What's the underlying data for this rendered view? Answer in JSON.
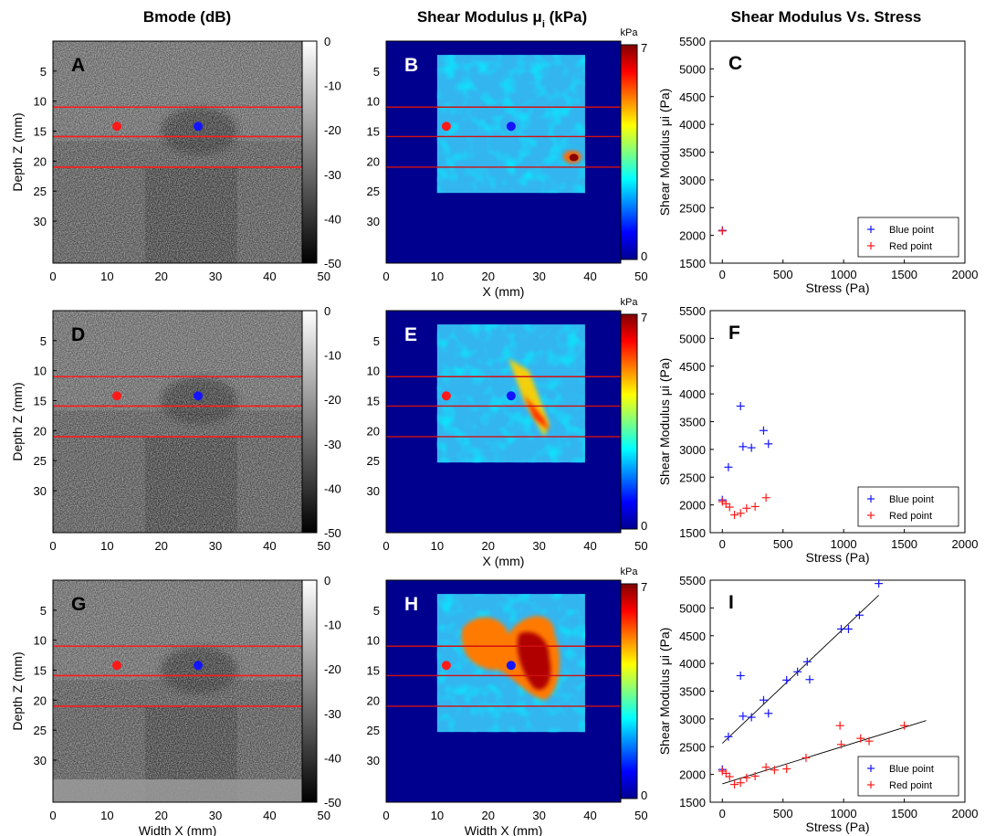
{
  "column_titles": {
    "bmode": "Bmode (dB)",
    "shear": "Shear Modulus μ",
    "shear_sub": "i",
    "shear_unit": " (kPa)",
    "stress": "Shear Modulus Vs. Stress"
  },
  "panel_letters": [
    "A",
    "B",
    "C",
    "D",
    "E",
    "F",
    "G",
    "H",
    "I"
  ],
  "bmode": {
    "ylabel": "Depth Z (mm)",
    "xlabel_bottom": "Width X (mm)",
    "xlim": [
      0,
      46
    ],
    "ylim": [
      0,
      37
    ],
    "xticks": [
      "0",
      "10",
      "20",
      "30",
      "40",
      "50"
    ],
    "yticks": [
      "5",
      "10",
      "15",
      "20",
      "25",
      "30"
    ],
    "colorbar_ticks": [
      "0",
      "-10",
      "-20",
      "-30",
      "-40",
      "-50"
    ],
    "colorbar_range": [
      -50,
      0
    ],
    "red_lines_depth": [
      11,
      15.9,
      21
    ],
    "red_point": [
      11.8,
      14.2
    ],
    "blue_point": [
      26.8,
      14.2
    ],
    "red_color": "#ff1a1a",
    "blue_color": "#1414ff"
  },
  "shear": {
    "xlabel_mid": "X (mm)",
    "xlabel_bottom": "Width X (mm)",
    "xlim": [
      0,
      46
    ],
    "ylim": [
      0,
      37
    ],
    "xticks": [
      "0",
      "10",
      "20",
      "30",
      "40",
      "50"
    ],
    "yticks": [
      "5",
      "10",
      "15",
      "20",
      "25",
      "30"
    ],
    "colorbar_unit": "kPa",
    "colorbar_ticks": [
      "7",
      "0"
    ],
    "colorbar_range": [
      0,
      7
    ],
    "roi_x": [
      10,
      39
    ],
    "roi_y": [
      2.3,
      25.3
    ],
    "red_lines_depth": [
      11,
      15.9,
      21
    ],
    "red_point": [
      11.8,
      14.2
    ],
    "blue_point": [
      24.5,
      14.2
    ],
    "background_color": "#00008f"
  },
  "chart_data": [
    {
      "panel": "C",
      "type": "scatter",
      "xlabel": "Stress (Pa)",
      "ylabel": "Shear Modulus μi (Pa)",
      "xlim": [
        -100,
        2000
      ],
      "ylim": [
        1500,
        5500
      ],
      "xticks": [
        "0",
        "500",
        "1000",
        "1500",
        "2000"
      ],
      "yticks": [
        "1500",
        "2000",
        "2500",
        "3000",
        "3500",
        "4000",
        "4500",
        "5000",
        "5500"
      ],
      "legend_position": "bottom-right",
      "series": [
        {
          "name": "Blue point",
          "color": "#1414ff",
          "points": [
            [
              0,
              2090
            ]
          ]
        },
        {
          "name": "Red point",
          "color": "#ff1a1a",
          "points": [
            [
              0,
              2080
            ]
          ]
        }
      ]
    },
    {
      "panel": "F",
      "type": "scatter",
      "xlabel": "Stress (Pa)",
      "ylabel": "Shear Modulus μi (Pa)",
      "xlim": [
        -100,
        2000
      ],
      "ylim": [
        1500,
        5500
      ],
      "xticks": [
        "0",
        "500",
        "1000",
        "1500",
        "2000"
      ],
      "yticks": [
        "1500",
        "2000",
        "2500",
        "3000",
        "3500",
        "4000",
        "4500",
        "5000",
        "5500"
      ],
      "legend_position": "bottom-right",
      "series": [
        {
          "name": "Blue point",
          "color": "#1414ff",
          "points": [
            [
              0,
              2090
            ],
            [
              50,
              2680
            ],
            [
              150,
              3780
            ],
            [
              170,
              3050
            ],
            [
              240,
              3030
            ],
            [
              340,
              3340
            ],
            [
              380,
              3100
            ]
          ]
        },
        {
          "name": "Red point",
          "color": "#ff1a1a",
          "points": [
            [
              0,
              2060
            ],
            [
              30,
              2020
            ],
            [
              60,
              1960
            ],
            [
              100,
              1820
            ],
            [
              150,
              1850
            ],
            [
              200,
              1940
            ],
            [
              270,
              1970
            ],
            [
              360,
              2130
            ]
          ]
        }
      ]
    },
    {
      "panel": "I",
      "type": "scatter",
      "xlabel": "Stress (Pa)",
      "ylabel": "Shear Modulus μi (Pa)",
      "xlim": [
        -100,
        2000
      ],
      "ylim": [
        1500,
        5500
      ],
      "xticks": [
        "0",
        "500",
        "1000",
        "1500",
        "2000"
      ],
      "yticks": [
        "1500",
        "2000",
        "2500",
        "3000",
        "3500",
        "4000",
        "4500",
        "5000",
        "5500"
      ],
      "legend_position": "bottom-right",
      "series": [
        {
          "name": "Blue point",
          "color": "#1414ff",
          "points": [
            [
              0,
              2090
            ],
            [
              50,
              2680
            ],
            [
              150,
              3780
            ],
            [
              170,
              3050
            ],
            [
              240,
              3030
            ],
            [
              340,
              3340
            ],
            [
              380,
              3100
            ],
            [
              530,
              3700
            ],
            [
              620,
              3850
            ],
            [
              700,
              4030
            ],
            [
              720,
              3710
            ],
            [
              980,
              4620
            ],
            [
              1040,
              4620
            ],
            [
              1130,
              4870
            ],
            [
              1290,
              5440
            ]
          ],
          "fit": [
            [
              0,
              2560
            ],
            [
              1290,
              5230
            ]
          ]
        },
        {
          "name": "Red point",
          "color": "#ff1a1a",
          "points": [
            [
              0,
              2060
            ],
            [
              30,
              2020
            ],
            [
              60,
              1960
            ],
            [
              100,
              1820
            ],
            [
              150,
              1850
            ],
            [
              200,
              1940
            ],
            [
              270,
              1970
            ],
            [
              360,
              2130
            ],
            [
              430,
              2080
            ],
            [
              530,
              2100
            ],
            [
              690,
              2300
            ],
            [
              970,
              2880
            ],
            [
              980,
              2540
            ],
            [
              1140,
              2650
            ],
            [
              1210,
              2600
            ],
            [
              1500,
              2880
            ]
          ],
          "fit": [
            [
              0,
              1830
            ],
            [
              1680,
              2970
            ]
          ]
        }
      ]
    }
  ]
}
